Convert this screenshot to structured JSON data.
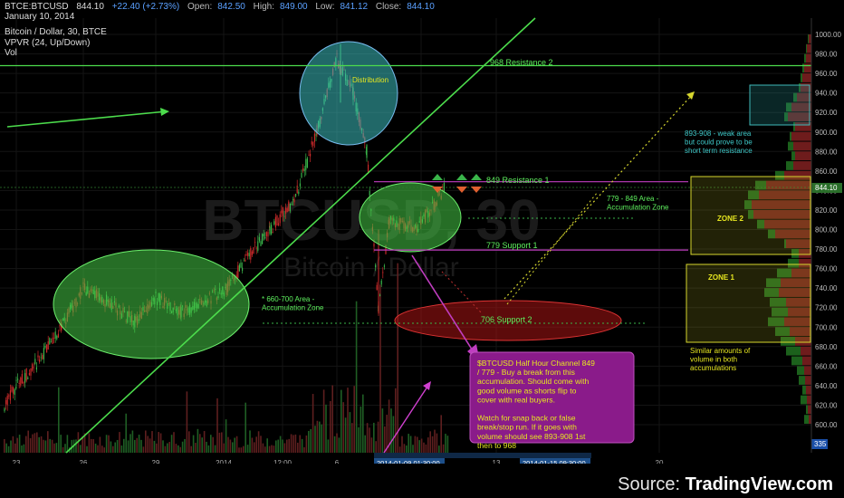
{
  "header": {
    "symbol": "BTCE:BTCUSD",
    "last": "844.10",
    "change": "+22.40 (+2.73%)",
    "open_label": "Open:",
    "open": "842.50",
    "high_label": "High:",
    "high": "849.00",
    "low_label": "Low:",
    "low": "841.12",
    "close_label": "Close:",
    "close": "844.10",
    "date": "January 10, 2014",
    "title": "Bitcoin / Dollar, 30, BTCE",
    "indicator1": "VPVR (24, Up/Down)",
    "indicator2": "Vol"
  },
  "watermark": {
    "big": "BTCUSD, 30",
    "small": "Bitcoin / Dollar"
  },
  "source": {
    "prefix": "Source: ",
    "brand": "TradingView.com"
  },
  "colors": {
    "bg": "#000000",
    "up": "#3ab54a",
    "down": "#cc2a2a",
    "annotation": "#5ef05e",
    "magenta": "#cc33cc",
    "teal": "#3fb9b9",
    "yellow": "#d6d62e"
  },
  "chart_data": {
    "type": "candlestick",
    "title": "Bitcoin / Dollar, 30, BTCE",
    "ylim": [
      585,
      1010
    ],
    "y_ticks": [
      600,
      620,
      640,
      660,
      680,
      700,
      720,
      740,
      760,
      780,
      800,
      820,
      840,
      860,
      880,
      900,
      920,
      940,
      960,
      980,
      1000
    ],
    "x_ticks": [
      "23",
      "26",
      "29",
      "2014",
      "12:00",
      "6",
      "9",
      "13",
      "20"
    ],
    "current_price": "844.10",
    "cursor_price": "335",
    "cursor_time_labels": [
      "2014-01-09 01:30:00",
      "2014-01-15 09:30:00"
    ],
    "price_path": [
      {
        "t": "22 Dec",
        "p": 620
      },
      {
        "t": "23 Dec",
        "p": 640
      },
      {
        "t": "24 Dec",
        "p": 665
      },
      {
        "t": "25 Dec",
        "p": 700
      },
      {
        "t": "26 Dec",
        "p": 740
      },
      {
        "t": "27 Dec",
        "p": 725
      },
      {
        "t": "28 Dec",
        "p": 705
      },
      {
        "t": "29 Dec",
        "p": 730
      },
      {
        "t": "30 Dec",
        "p": 715
      },
      {
        "t": "31 Dec",
        "p": 725
      },
      {
        "t": "1 Jan",
        "p": 740
      },
      {
        "t": "2 Jan",
        "p": 770
      },
      {
        "t": "3 Jan",
        "p": 800
      },
      {
        "t": "4 Jan",
        "p": 830
      },
      {
        "t": "5 Jan",
        "p": 900
      },
      {
        "t": "6 Jan",
        "p": 975
      },
      {
        "t": "6 Jan PM",
        "p": 940
      },
      {
        "t": "7 Jan",
        "p": 880
      },
      {
        "t": "7 Jan PM",
        "p": 720
      },
      {
        "t": "8 Jan",
        "p": 810
      },
      {
        "t": "9 Jan",
        "p": 800
      },
      {
        "t": "10 Jan",
        "p": 844
      }
    ],
    "levels": [
      {
        "label": "968 Resistance 2",
        "value": 968
      },
      {
        "label": "849 Resistance 1",
        "value": 849
      },
      {
        "label": "779 Support 1",
        "value": 779
      },
      {
        "label": "706 Support 2",
        "value": 706
      }
    ],
    "annotations": [
      {
        "id": "distribution",
        "text": "Distribution"
      },
      {
        "id": "acc1",
        "text": "* 660-700 Area -\nAccumulation Zone"
      },
      {
        "id": "acc2",
        "text": "779 - 849  Area -\nAccumulation Zone"
      },
      {
        "id": "weak",
        "text": "893-908 - weak area\nbut could prove to be\nshort term resistance"
      },
      {
        "id": "zone2",
        "text": "ZONE 2"
      },
      {
        "id": "zone1",
        "text": "ZONE 1"
      },
      {
        "id": "similar",
        "text": "Similar amounts of\nvolume in both\naccumulations"
      },
      {
        "id": "callout",
        "text": "$BTCUSD Half Hour Channel 849\n/ 779 -  Buy a break from this\naccumulation.  Should come with\ngood volume as shorts flip to\ncover with real buyers.\n\nWatch for snap back or false\nbreak/stop run.  If it goes with\nvolume should see 893-908 1st\nthen to 968"
      }
    ]
  }
}
